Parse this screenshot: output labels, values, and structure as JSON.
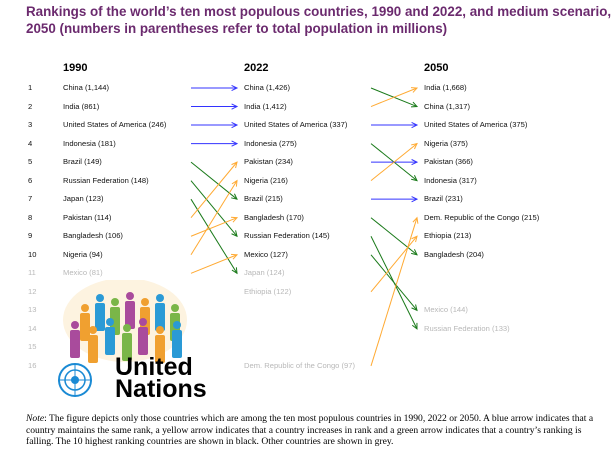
{
  "title": "Rankings of the world’s ten most populous countries, 1990 and 2022, and medium scenario, 2050 (numbers in parentheses refer to total population in millions)",
  "columns": {
    "c1990": "1990",
    "c2022": "2022",
    "c2050": "2050"
  },
  "ranks": [
    "1",
    "2",
    "3",
    "4",
    "5",
    "6",
    "7",
    "8",
    "9",
    "10",
    "11",
    "12",
    "13",
    "14",
    "15",
    "16"
  ],
  "colors": {
    "same": "#3333ff",
    "up": "#ffaa33",
    "down": "#1a7a1a",
    "top10": "#111111",
    "other": "#b8b8b8"
  },
  "entries_1990": [
    {
      "rank": 1,
      "label": "China (1,144)"
    },
    {
      "rank": 2,
      "label": "India (861)"
    },
    {
      "rank": 3,
      "label": "United States of America (246)"
    },
    {
      "rank": 4,
      "label": "Indonesia (181)"
    },
    {
      "rank": 5,
      "label": "Brazil (149)"
    },
    {
      "rank": 6,
      "label": "Russian Federation (148)"
    },
    {
      "rank": 7,
      "label": "Japan (123)"
    },
    {
      "rank": 8,
      "label": "Pakistan (114)"
    },
    {
      "rank": 9,
      "label": "Bangladesh (106)"
    },
    {
      "rank": 10,
      "label": "Nigeria (94)"
    },
    {
      "rank": 11,
      "label": "Mexico (81)"
    }
  ],
  "entries_2022": [
    {
      "rank": 1,
      "label": "China (1,426)"
    },
    {
      "rank": 2,
      "label": "India (1,412)"
    },
    {
      "rank": 3,
      "label": "United States of America (337)"
    },
    {
      "rank": 4,
      "label": "Indonesia (275)"
    },
    {
      "rank": 5,
      "label": "Pakistan (234)"
    },
    {
      "rank": 6,
      "label": "Nigeria (216)"
    },
    {
      "rank": 7,
      "label": "Brazil (215)"
    },
    {
      "rank": 8,
      "label": "Bangladesh (170)"
    },
    {
      "rank": 9,
      "label": "Russian Federation (145)"
    },
    {
      "rank": 10,
      "label": "Mexico (127)"
    },
    {
      "rank": 11,
      "label": "Japan (124)"
    },
    {
      "rank": 12,
      "label": "Ethiopia (122)"
    },
    {
      "rank": 16,
      "label": "Dem. Republic of the Congo (97)"
    }
  ],
  "entries_2050": [
    {
      "rank": 1,
      "label": "India (1,668)"
    },
    {
      "rank": 2,
      "label": "China (1,317)"
    },
    {
      "rank": 3,
      "label": "United States of America (375)"
    },
    {
      "rank": 4,
      "label": "Nigeria (375)"
    },
    {
      "rank": 5,
      "label": "Pakistan (366)"
    },
    {
      "rank": 6,
      "label": "Indonesia (317)"
    },
    {
      "rank": 7,
      "label": "Brazil (231)"
    },
    {
      "rank": 8,
      "label": "Dem. Republic of the Congo (215)"
    },
    {
      "rank": 9,
      "label": "Ethiopia (213)"
    },
    {
      "rank": 10,
      "label": "Bangladesh (204)"
    },
    {
      "rank": 13,
      "label": "Mexico (144)"
    },
    {
      "rank": 14,
      "label": "Russian Federation (133)"
    }
  ],
  "moves_1990_2022": [
    [
      1,
      1
    ],
    [
      2,
      2
    ],
    [
      3,
      3
    ],
    [
      4,
      4
    ],
    [
      5,
      7
    ],
    [
      6,
      9
    ],
    [
      7,
      11
    ],
    [
      8,
      5
    ],
    [
      9,
      8
    ],
    [
      10,
      6
    ],
    [
      11,
      10
    ]
  ],
  "moves_2022_2050": [
    [
      1,
      2
    ],
    [
      2,
      1
    ],
    [
      3,
      3
    ],
    [
      4,
      6
    ],
    [
      5,
      5
    ],
    [
      6,
      4
    ],
    [
      7,
      7
    ],
    [
      8,
      10
    ],
    [
      9,
      14
    ],
    [
      10,
      13
    ],
    [
      12,
      9
    ],
    [
      16,
      8
    ]
  ],
  "logo": {
    "text": "United Nations"
  },
  "note": {
    "label": "Note",
    "text": ":  The figure depicts only those countries which are among the ten most populous countries in 1990, 2022 or 2050. A blue arrow indicates that a country maintains the same rank, a yellow arrow indicates that a country increases in rank and a green arrow indicates that a country’s ranking is falling. The 10 highest ranking countries are shown in black. Other countries are shown in grey."
  }
}
